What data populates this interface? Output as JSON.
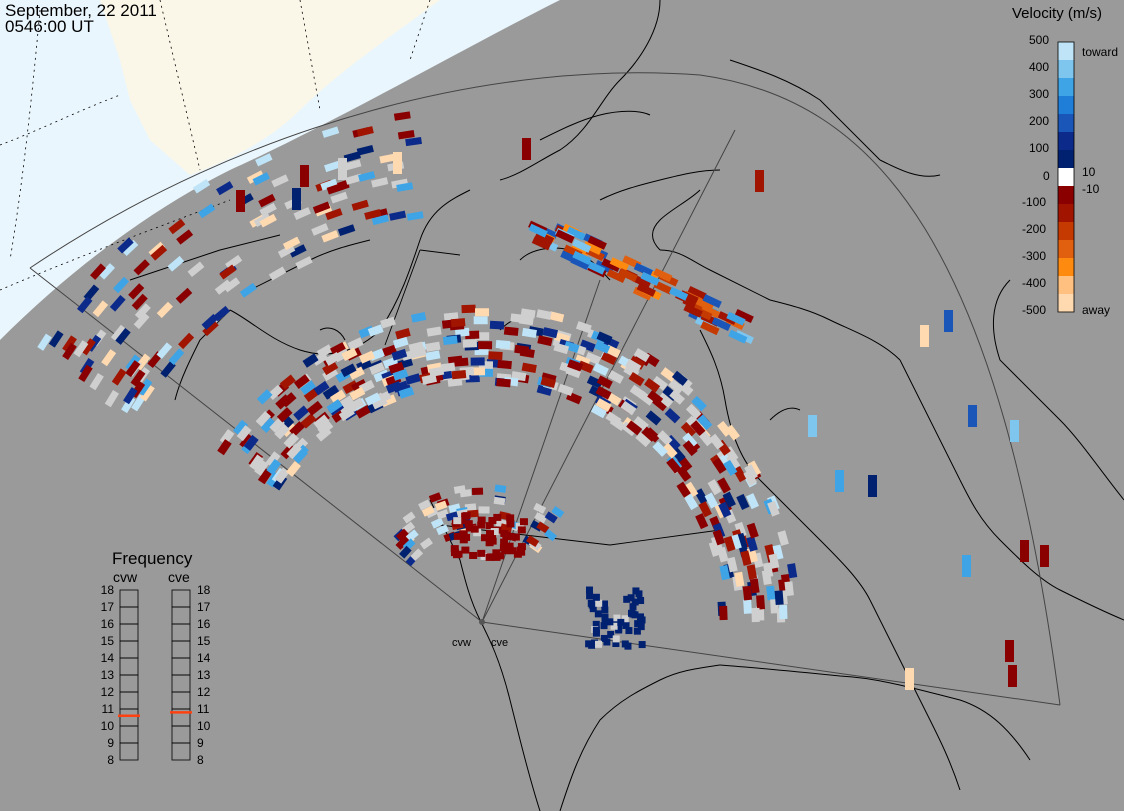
{
  "header": {
    "date": "September, 22 2011",
    "time": "0546:00 UT"
  },
  "legend": {
    "title": "Velocity (m/s)",
    "ticks": [
      "500",
      "400",
      "300",
      "200",
      "100",
      "10",
      "0",
      "-10",
      "-100",
      "-200",
      "-300",
      "-400",
      "-500"
    ],
    "toward_label": "toward",
    "away_label": "away",
    "colors": [
      "#bfe4f7",
      "#7fc6ef",
      "#3ea4e6",
      "#1f7ed8",
      "#1a55b8",
      "#0b2a8a",
      "#002070",
      "#ffffff",
      "#8a0000",
      "#a01400",
      "#c43a00",
      "#e06010",
      "#ff8a10",
      "#ffc080",
      "#ffd9b0"
    ]
  },
  "frequency": {
    "title": "Frequency",
    "columns": [
      {
        "label": "cvw",
        "value": 10.6,
        "marker_color": "#ff4010"
      },
      {
        "label": "cve",
        "value": 10.8,
        "marker_color": "#ff4010"
      }
    ],
    "scale": [
      "18",
      "17",
      "16",
      "15",
      "14",
      "13",
      "12",
      "11",
      "10",
      "9",
      "8"
    ]
  },
  "radars": [
    {
      "label": "cvw"
    },
    {
      "label": "cve"
    }
  ],
  "colors": {
    "background": "#9a9a9a",
    "daylight": "#fbf7e8",
    "ocean_day": "#eaf6fd",
    "coast": "#000000",
    "fov": "#444444",
    "noscatter": "#cfcfcf"
  }
}
